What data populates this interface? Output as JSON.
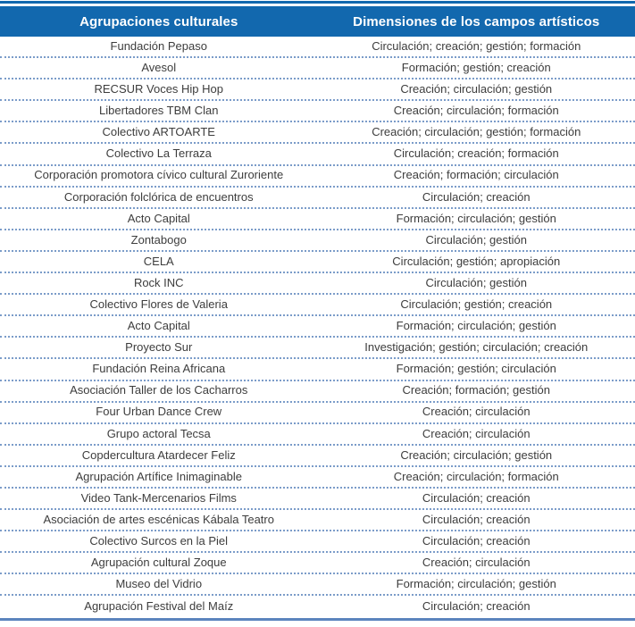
{
  "table": {
    "columns": [
      "Agrupaciones culturales",
      "Dimensiones de los campos artísticos"
    ],
    "rows": [
      {
        "name": "Fundación Pepaso",
        "dimensions": "Circulación; creación; gestión; formación"
      },
      {
        "name": "Avesol",
        "dimensions": "Formación; gestión; creación"
      },
      {
        "name": "RECSUR Voces Hip Hop",
        "dimensions": "Creación; circulación; gestión"
      },
      {
        "name": "Libertadores TBM Clan",
        "dimensions": "Creación; circulación; formación"
      },
      {
        "name": "Colectivo ARTOARTE",
        "dimensions": "Creación; circulación; gestión; formación"
      },
      {
        "name": "Colectivo La Terraza",
        "dimensions": "Circulación; creación; formación"
      },
      {
        "name": "Corporación promotora cívico cultural Zuroriente",
        "dimensions": "Creación; formación; circulación"
      },
      {
        "name": "Corporación folclórica de encuentros",
        "dimensions": "Circulación; creación"
      },
      {
        "name": "Acto Capital",
        "dimensions": "Formación; circulación; gestión"
      },
      {
        "name": "Zontabogo",
        "dimensions": "Circulación; gestión"
      },
      {
        "name": "CELA",
        "dimensions": "Circulación; gestión; apropiación"
      },
      {
        "name": "Rock INC",
        "dimensions": "Circulación; gestión"
      },
      {
        "name": "Colectivo Flores de Valeria",
        "dimensions": "Circulación; gestión; creación"
      },
      {
        "name": "Acto Capital",
        "dimensions": "Formación; circulación; gestión"
      },
      {
        "name": "Proyecto Sur",
        "dimensions": "Investigación; gestión; circulación; creación"
      },
      {
        "name": "Fundación Reina Africana",
        "dimensions": "Formación; gestión; circulación"
      },
      {
        "name": "Asociación Taller de los Cacharros",
        "dimensions": "Creación; formación; gestión"
      },
      {
        "name": "Four Urban Dance Crew",
        "dimensions": "Creación; circulación"
      },
      {
        "name": "Grupo actoral Tecsa",
        "dimensions": "Creación; circulación"
      },
      {
        "name": "Copdercultura Atardecer Feliz",
        "dimensions": "Creación; circulación; gestión"
      },
      {
        "name": "Agrupación Artífice Inimaginable",
        "dimensions": "Creación; circulación; formación"
      },
      {
        "name": "Video Tank-Mercenarios Films",
        "dimensions": "Circulación; creación"
      },
      {
        "name": "Asociación de artes escénicas Kábala Teatro",
        "dimensions": "Circulación; creación"
      },
      {
        "name": "Colectivo Surcos en la Piel",
        "dimensions": "Circulación; creación"
      },
      {
        "name": "Agrupación cultural Zoque",
        "dimensions": "Creación; circulación"
      },
      {
        "name": "Museo del Vidrio",
        "dimensions": "Formación; circulación; gestión"
      },
      {
        "name": "Agrupación Festival del Maíz",
        "dimensions": "Circulación; creación"
      }
    ]
  },
  "colors": {
    "header_background": "#1268ae",
    "top_rule": "#1268ae",
    "bottom_rule": "#5b84bd",
    "row_divider": "#7b9cc9",
    "header_text": "#ffffff",
    "body_text": "#3d3d3d"
  }
}
